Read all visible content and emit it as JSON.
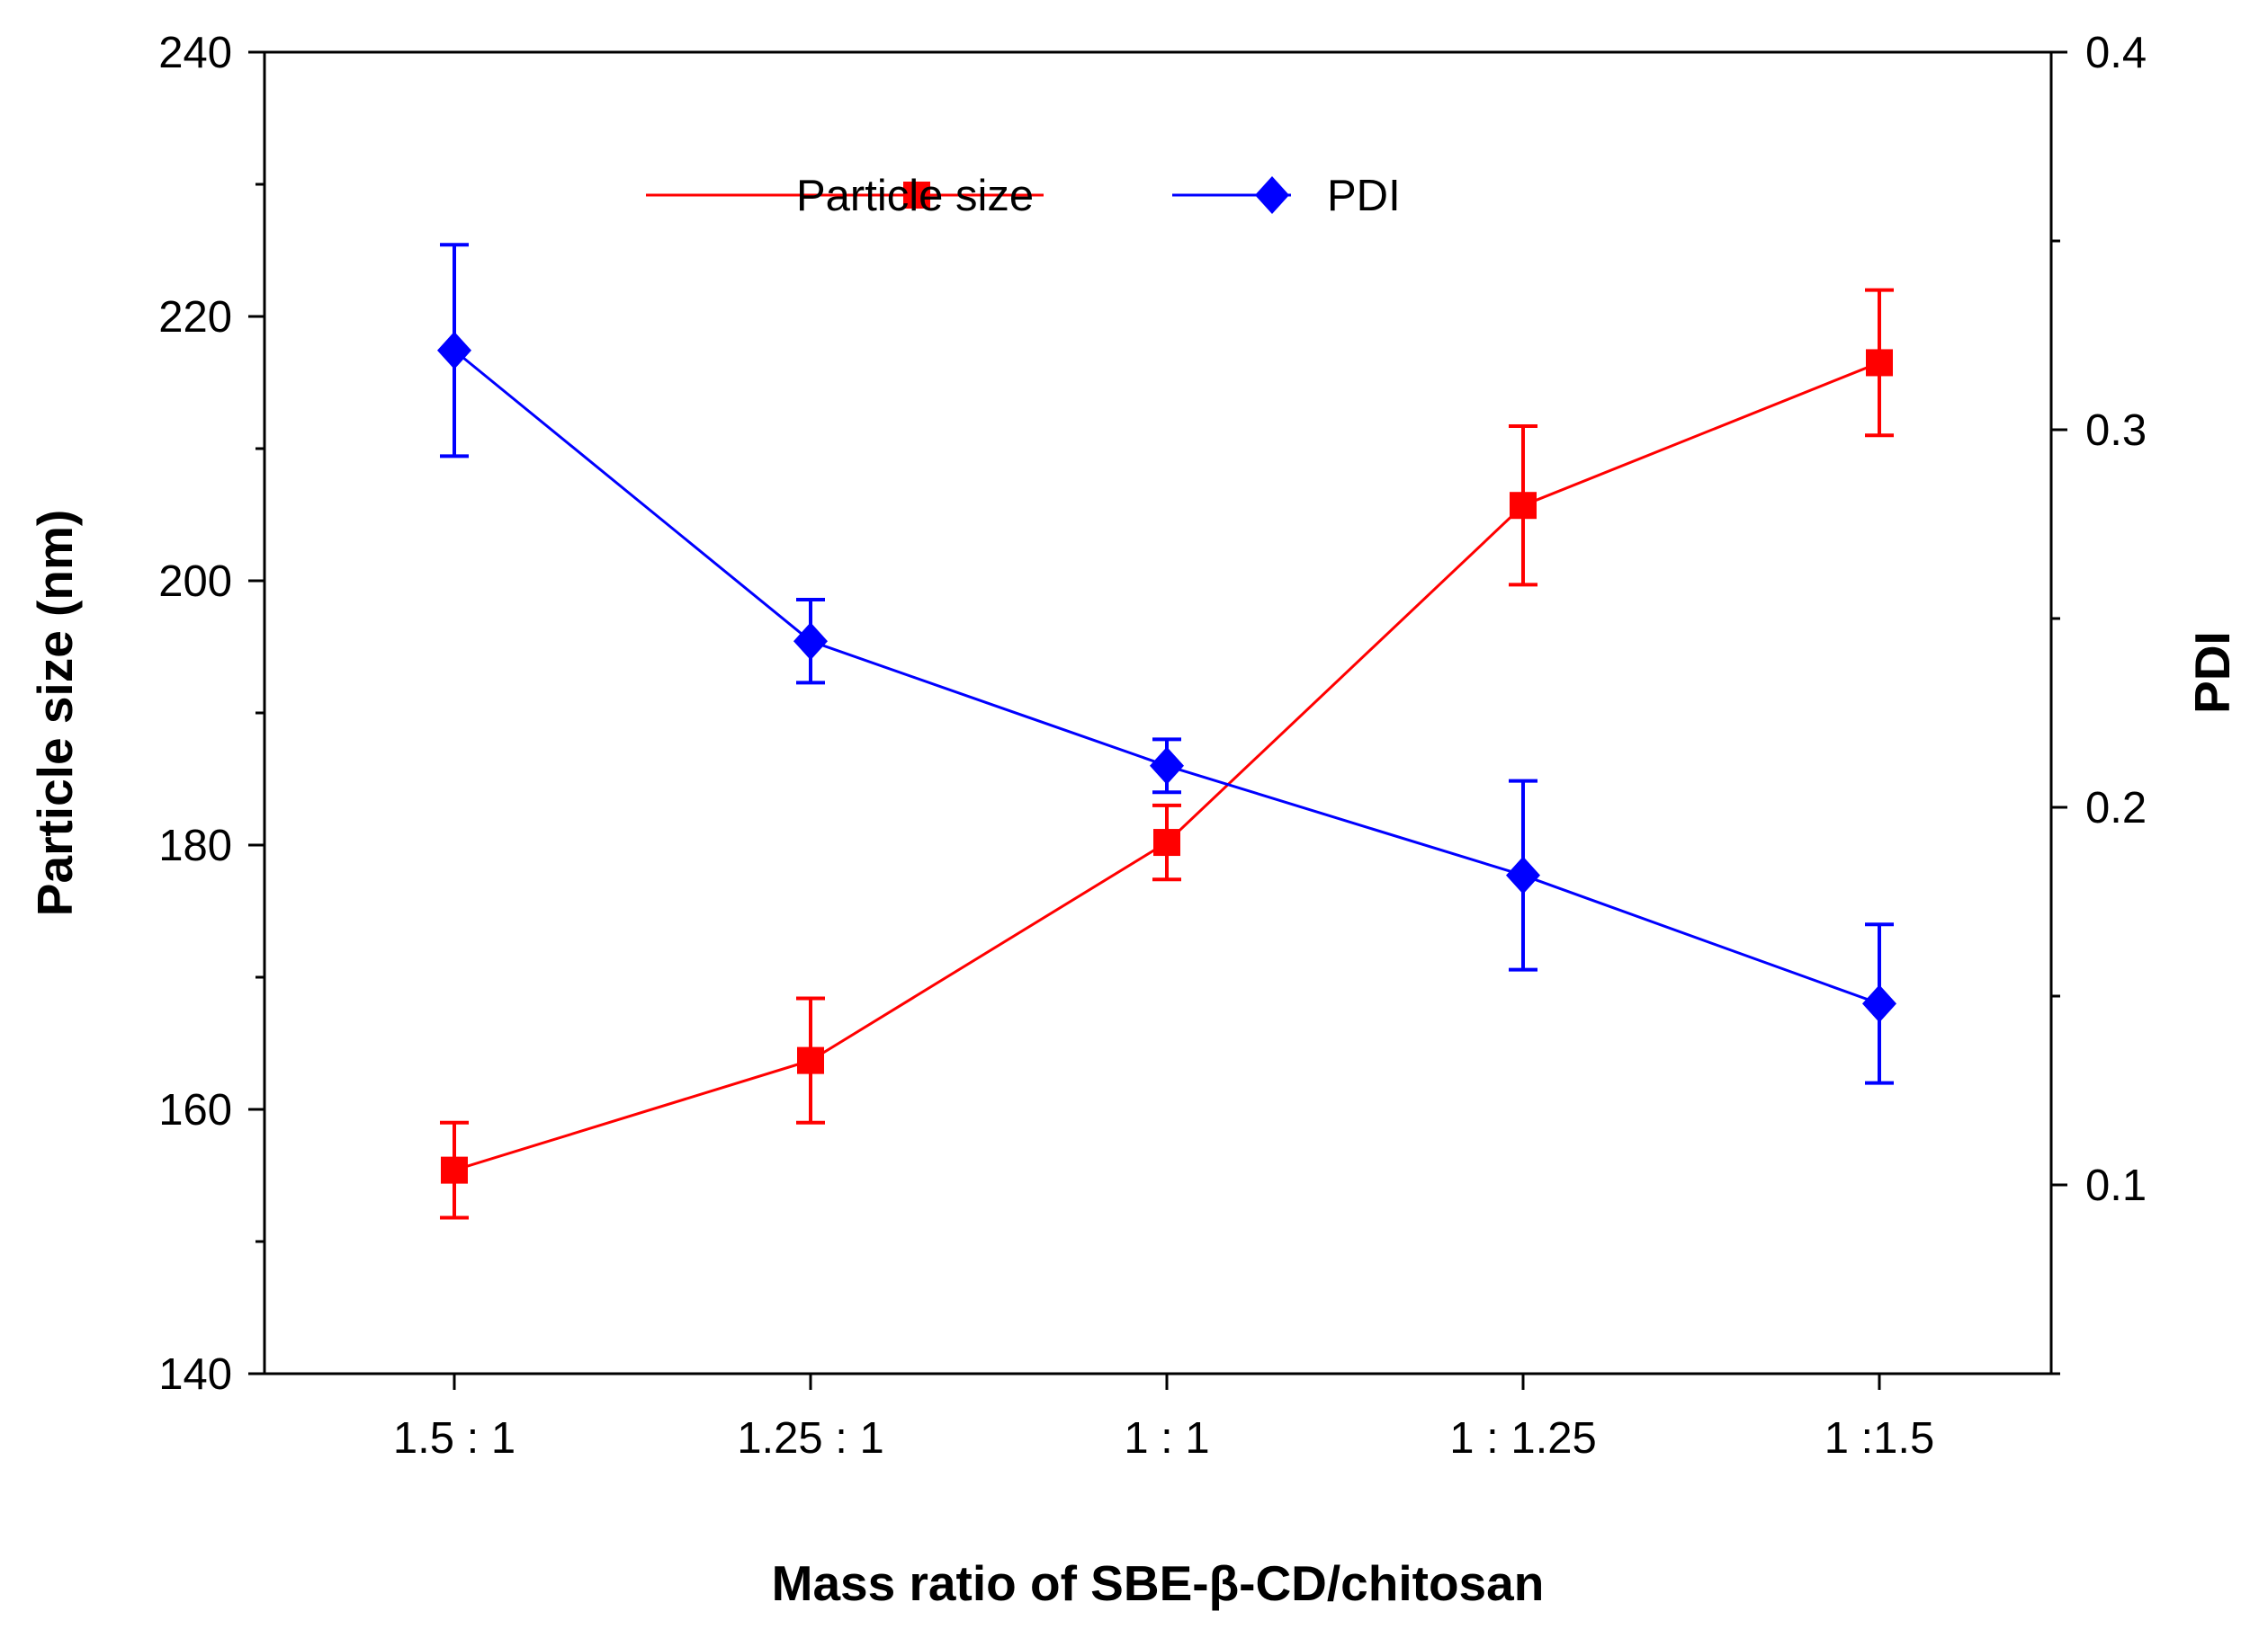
{
  "chart_data": {
    "type": "line",
    "xlabel": "Mass ratio of SBE-β-CD/chitosan",
    "ylabel_left": "Particle size (nm)",
    "ylabel_right": "PDI",
    "categories": [
      "1.5 : 1",
      "1.25 : 1",
      "1 : 1",
      "1 : 1.25",
      "1 :1.5"
    ],
    "ylim_left": [
      140,
      240
    ],
    "ylim_right": [
      0.05,
      0.4
    ],
    "yticks_left": [
      140,
      160,
      180,
      200,
      220,
      240
    ],
    "yticks_right": [
      0.1,
      0.2,
      0.3,
      0.4
    ],
    "series": [
      {
        "name": "Particle size",
        "axis": "left",
        "color": "#ff0000",
        "marker": "square",
        "values": [
          155.4,
          163.7,
          180.2,
          205.7,
          216.5
        ],
        "errors": [
          3.6,
          4.7,
          2.8,
          6.0,
          5.5
        ]
      },
      {
        "name": "PDI",
        "axis": "right",
        "color": "#0000ff",
        "marker": "diamond",
        "values": [
          0.321,
          0.244,
          0.211,
          0.182,
          0.148
        ],
        "errors": [
          0.028,
          0.011,
          0.007,
          0.025,
          0.021
        ]
      }
    ],
    "legend": {
      "position": "top-center"
    },
    "grid": false
  }
}
